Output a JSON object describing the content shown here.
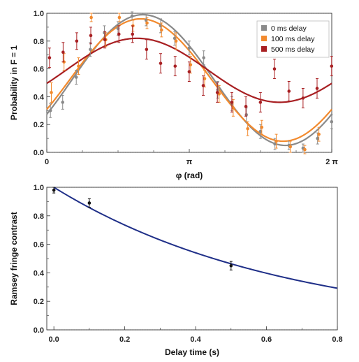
{
  "chart_data": [
    {
      "type": "scatter",
      "xlabel": "φ (rad)",
      "ylabel": "Probability in F = 1",
      "xlim": [
        0,
        6.2832
      ],
      "ylim": [
        0,
        1
      ],
      "x_tick_labels": [
        "0",
        "π",
        "2 π"
      ],
      "y_tick_labels": [
        "0.0",
        "0.2",
        "0.4",
        "0.6",
        "0.8",
        "1.0"
      ],
      "legend_position": "top-right",
      "grid": false,
      "series": [
        {
          "name": "0 ms delay",
          "color": "#8a8a8a",
          "x": [
            0.08,
            0.35,
            0.65,
            0.96,
            1.27,
            1.57,
            1.88,
            2.19,
            2.51,
            2.82,
            3.14,
            3.46,
            3.77,
            4.08,
            4.4,
            4.71,
            5.03,
            5.34,
            5.65,
            5.97,
            6.28
          ],
          "y": [
            0.3,
            0.36,
            0.54,
            0.74,
            0.86,
            0.89,
            0.98,
            0.95,
            0.91,
            0.82,
            0.75,
            0.68,
            0.45,
            0.35,
            0.27,
            0.15,
            0.06,
            0.05,
            0.03,
            0.1,
            0.22
          ],
          "err": [
            0.05,
            0.05,
            0.05,
            0.05,
            0.05,
            0.05,
            0.03,
            0.04,
            0.05,
            0.05,
            0.05,
            0.05,
            0.06,
            0.05,
            0.05,
            0.05,
            0.04,
            0.03,
            0.03,
            0.04,
            0.05
          ],
          "fit": {
            "offset": 0.52,
            "amplitude": 0.47,
            "phase_shift": 0.55
          }
        },
        {
          "name": "100 ms delay",
          "color": "#f28a2e",
          "x": [
            0.1,
            0.38,
            0.7,
            0.98,
            1.3,
            1.6,
            1.9,
            2.21,
            2.53,
            2.85,
            3.17,
            3.48,
            3.8,
            4.11,
            4.43,
            4.74,
            5.06,
            5.37,
            5.69,
            6.0
          ],
          "y": [
            0.43,
            0.65,
            0.62,
            0.97,
            0.81,
            0.97,
            0.91,
            0.93,
            0.88,
            0.8,
            0.63,
            0.53,
            0.42,
            0.32,
            0.17,
            0.18,
            0.08,
            0.04,
            0.02,
            0.13
          ],
          "err": [
            0.07,
            0.06,
            0.06,
            0.03,
            0.05,
            0.03,
            0.04,
            0.04,
            0.05,
            0.06,
            0.06,
            0.06,
            0.06,
            0.06,
            0.05,
            0.05,
            0.05,
            0.04,
            0.03,
            0.05
          ],
          "fit": {
            "offset": 0.52,
            "amplitude": 0.44,
            "phase_shift": 0.5
          }
        },
        {
          "name": "500 ms delay",
          "color": "#a81f22",
          "x": [
            0.06,
            0.36,
            0.66,
            0.97,
            1.28,
            1.59,
            1.89,
            2.2,
            2.51,
            2.83,
            3.14,
            3.45,
            3.76,
            4.08,
            4.39,
            4.71,
            5.02,
            5.34,
            5.65,
            5.96,
            6.28
          ],
          "y": [
            0.68,
            0.72,
            0.8,
            0.84,
            0.81,
            0.85,
            0.85,
            0.74,
            0.64,
            0.62,
            0.58,
            0.48,
            0.43,
            0.36,
            0.33,
            0.36,
            0.6,
            0.44,
            0.39,
            0.46,
            0.62
          ],
          "err": [
            0.07,
            0.07,
            0.06,
            0.06,
            0.06,
            0.06,
            0.06,
            0.07,
            0.07,
            0.07,
            0.07,
            0.07,
            0.07,
            0.07,
            0.07,
            0.07,
            0.07,
            0.07,
            0.07,
            0.07,
            0.07
          ],
          "fit": {
            "offset": 0.59,
            "amplitude": 0.23,
            "phase_shift": 0.42
          }
        }
      ]
    },
    {
      "type": "scatter",
      "xlabel": "Delay time (s)",
      "ylabel": "Ramsey fringe contrast",
      "xlim": [
        -0.02,
        0.8
      ],
      "ylim": [
        0,
        1
      ],
      "x_ticks": [
        0.0,
        0.2,
        0.4,
        0.6,
        0.8
      ],
      "x_tick_labels": [
        "0.0",
        "0.2",
        "0.4",
        "0.6",
        "0.8"
      ],
      "y_tick_labels": [
        "0.0",
        "0.2",
        "0.4",
        "0.6",
        "0.8",
        "1.0"
      ],
      "grid": false,
      "series": [
        {
          "color": "#111111",
          "x": [
            0.0,
            0.1,
            0.5
          ],
          "y": [
            0.98,
            0.89,
            0.45
          ],
          "err": [
            0.02,
            0.03,
            0.03
          ]
        }
      ],
      "fit": {
        "type": "exponential",
        "amplitude": 1.0,
        "time_constant_s": 0.65,
        "color": "#1f2f88"
      }
    }
  ]
}
